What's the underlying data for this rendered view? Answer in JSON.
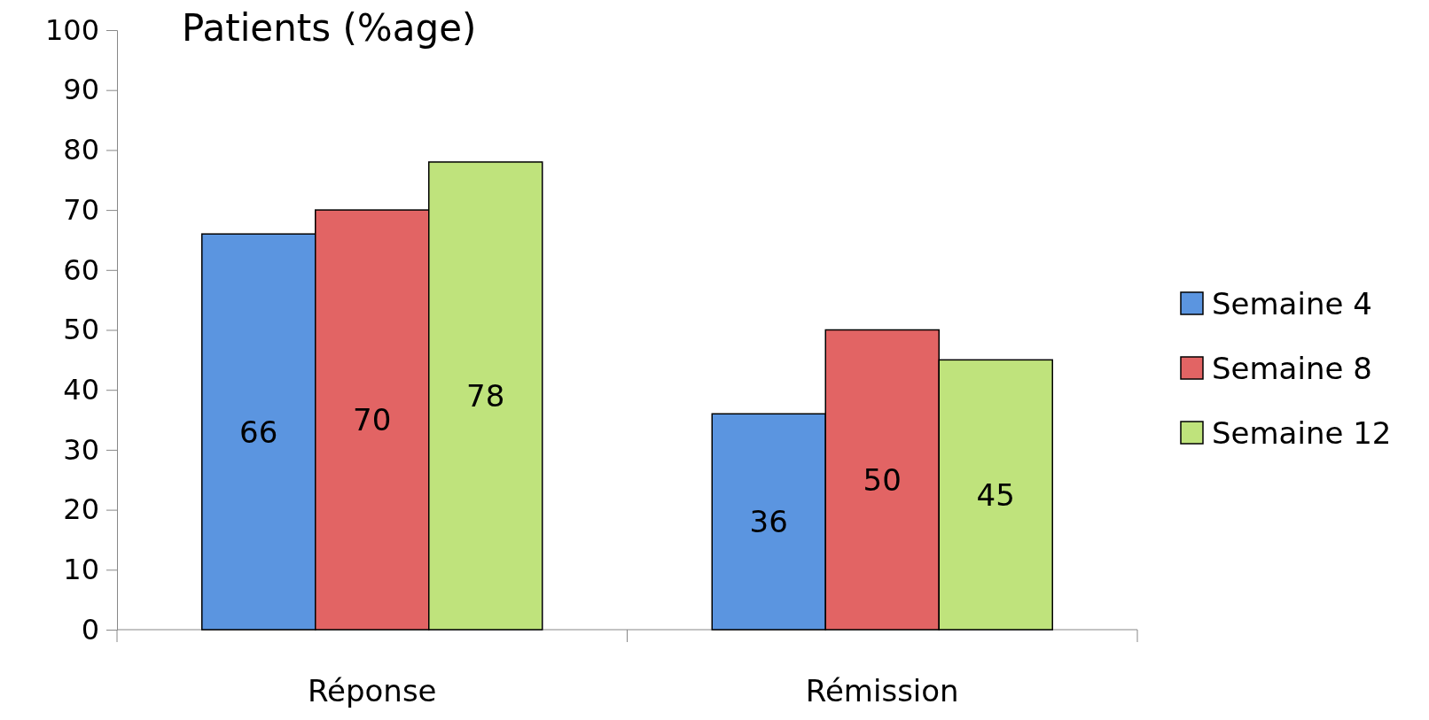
{
  "chart_data": {
    "type": "bar",
    "title": "Patients (%age)",
    "categories": [
      "Réponse",
      "Rémission"
    ],
    "series": [
      {
        "name": "Semaine 4",
        "color": "#5b95e0",
        "values": [
          66,
          36
        ]
      },
      {
        "name": "Semaine 8",
        "color": "#e26464",
        "values": [
          70,
          50
        ]
      },
      {
        "name": "Semaine 12",
        "color": "#bfe37c",
        "values": [
          78,
          45
        ]
      }
    ],
    "ylim": [
      0,
      100
    ],
    "yticks": [
      0,
      10,
      20,
      30,
      40,
      50,
      60,
      70,
      80,
      90,
      100
    ],
    "data_labels": true,
    "legend": "right",
    "grid": false
  }
}
